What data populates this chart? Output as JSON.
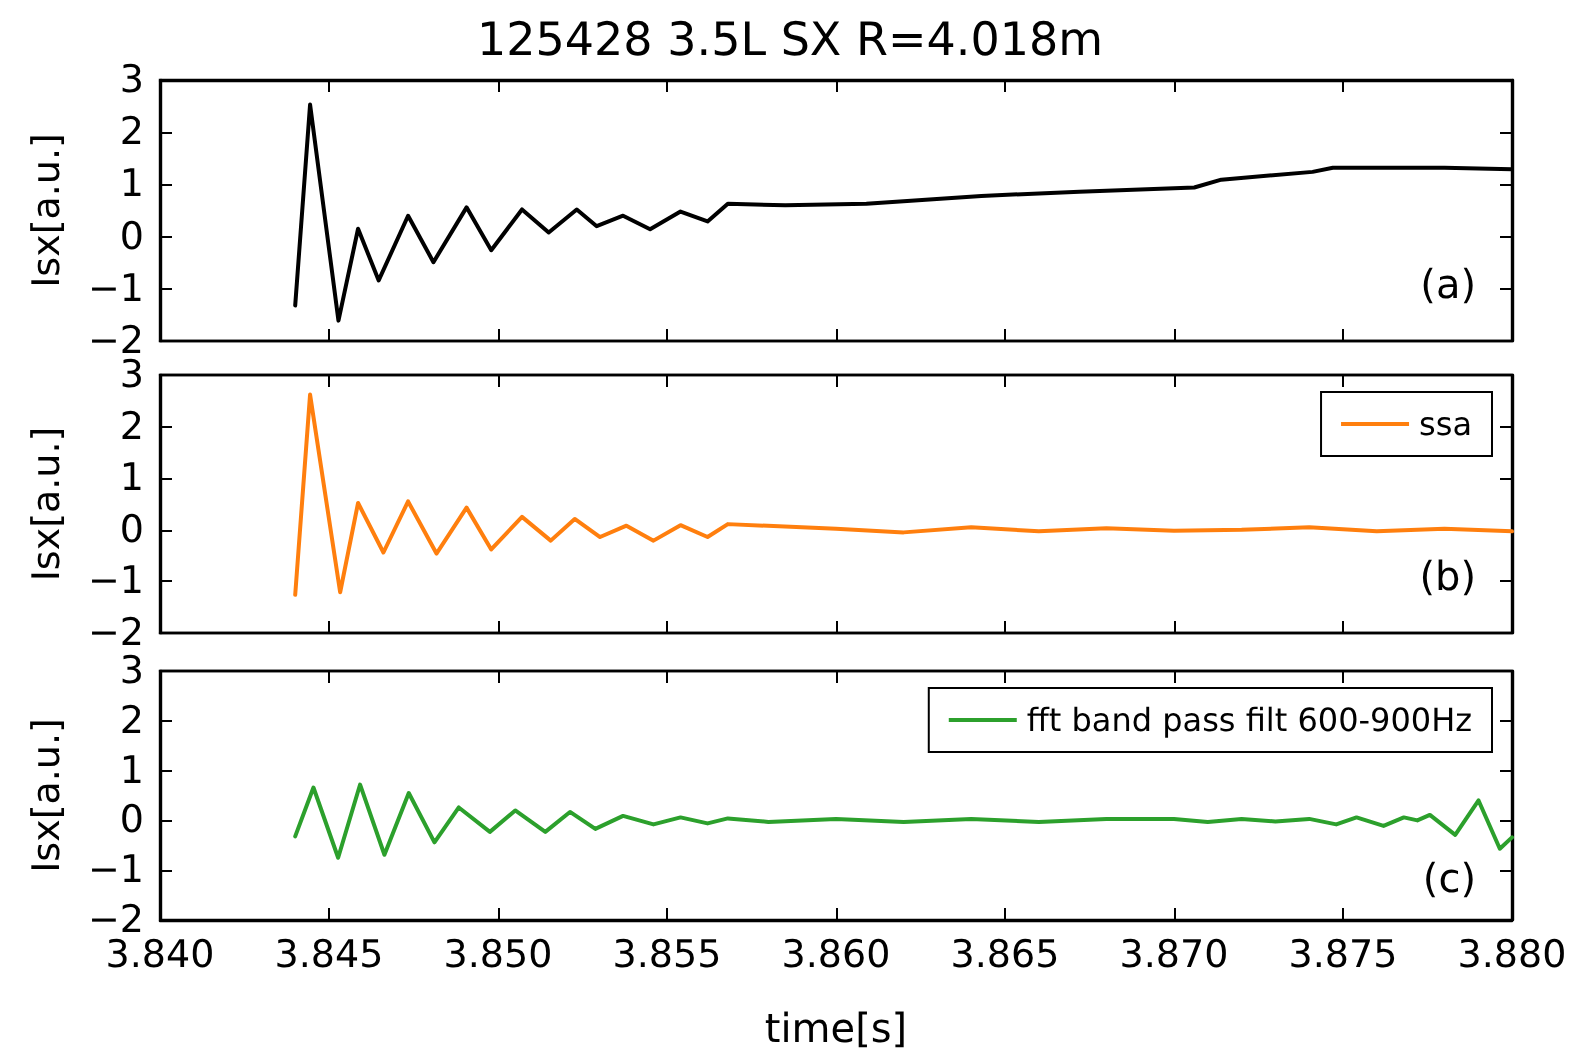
{
  "chart_data": [
    {
      "type": "line",
      "title": "125428 3.5L SX R=4.018m",
      "ylabel": "Isx[a.u.]",
      "annotations": [
        "(a)"
      ],
      "tick_labels": "y",
      "grid": false,
      "xlim": [
        3.84,
        3.88
      ],
      "xticks": [
        {
          "value": 3.84,
          "label": null
        },
        {
          "value": 3.845,
          "label": null
        },
        {
          "value": 3.85,
          "label": null
        },
        {
          "value": 3.855,
          "label": null
        },
        {
          "value": 3.86,
          "label": null
        },
        {
          "value": 3.865,
          "label": null
        },
        {
          "value": 3.87,
          "label": null
        },
        {
          "value": 3.875,
          "label": null
        },
        {
          "value": 3.88,
          "label": null
        }
      ],
      "ylim": [
        -2,
        3
      ],
      "yticks": [
        -2,
        -1,
        0,
        1,
        2,
        3
      ],
      "series": [
        {
          "color": "#000000",
          "x": [
            3.844,
            3.84444,
            3.84528,
            3.84586,
            3.84647,
            3.84734,
            3.84809,
            3.84907,
            3.8498,
            3.85071,
            3.8515,
            3.85233,
            3.85292,
            3.8537,
            3.8545,
            3.8554,
            3.8562,
            3.8568,
            3.8585,
            3.8609,
            3.8643,
            3.8672,
            3.8706,
            3.8714,
            3.8741,
            3.8747,
            3.878,
            3.88
          ],
          "values": [
            -1.32,
            2.53,
            -1.61,
            0.15,
            -0.84,
            0.4,
            -0.49,
            0.56,
            -0.26,
            0.52,
            0.08,
            0.52,
            0.2,
            0.4,
            0.14,
            0.48,
            0.29,
            0.63,
            0.6,
            0.63,
            0.78,
            0.86,
            0.94,
            1.09,
            1.24,
            1.32,
            1.32,
            1.29
          ]
        }
      ]
    },
    {
      "type": "line",
      "ylabel": "Isx[a.u.]",
      "annotations": [
        "(b)"
      ],
      "tick_labels": "y",
      "grid": false,
      "legend": "top right",
      "xlim": [
        3.84,
        3.88
      ],
      "xticks": [
        {
          "value": 3.84,
          "label": null
        },
        {
          "value": 3.845,
          "label": null
        },
        {
          "value": 3.85,
          "label": null
        },
        {
          "value": 3.855,
          "label": null
        },
        {
          "value": 3.86,
          "label": null
        },
        {
          "value": 3.865,
          "label": null
        },
        {
          "value": 3.87,
          "label": null
        },
        {
          "value": 3.875,
          "label": null
        },
        {
          "value": 3.88,
          "label": null
        }
      ],
      "ylim": [
        -2,
        3
      ],
      "yticks": [
        -2,
        -1,
        0,
        1,
        2,
        3
      ],
      "series": [
        {
          "name": "ssa",
          "color": "#ff7f0e",
          "x": [
            3.844,
            3.84444,
            3.84533,
            3.84586,
            3.84661,
            3.84734,
            3.84818,
            3.84907,
            3.8498,
            3.85071,
            3.85156,
            3.85227,
            3.85302,
            3.8538,
            3.8546,
            3.8554,
            3.8562,
            3.8568,
            3.86,
            3.862,
            3.864,
            3.866,
            3.868,
            3.87,
            3.872,
            3.874,
            3.876,
            3.878,
            3.88
          ],
          "values": [
            -1.26,
            2.62,
            -1.21,
            0.52,
            -0.44,
            0.55,
            -0.46,
            0.43,
            -0.38,
            0.25,
            -0.21,
            0.21,
            -0.14,
            0.08,
            -0.21,
            0.09,
            -0.14,
            0.11,
            0.02,
            -0.05,
            0.05,
            -0.03,
            0.03,
            -0.02,
            0.0,
            0.05,
            -0.03,
            0.02,
            -0.03
          ]
        }
      ]
    },
    {
      "type": "line",
      "ylabel": "Isx[a.u.]",
      "xlabel": "time[s]",
      "annotations": [
        "(c)"
      ],
      "grid": false,
      "legend": "top right",
      "xlim": [
        3.84,
        3.88
      ],
      "xticks": [
        {
          "value": 3.84,
          "label": "3.840"
        },
        {
          "value": 3.845,
          "label": "3.845"
        },
        {
          "value": 3.85,
          "label": "3.850"
        },
        {
          "value": 3.855,
          "label": "3.855"
        },
        {
          "value": 3.86,
          "label": "3.860"
        },
        {
          "value": 3.865,
          "label": "3.865"
        },
        {
          "value": 3.87,
          "label": "3.870"
        },
        {
          "value": 3.875,
          "label": "3.875"
        },
        {
          "value": 3.88,
          "label": "3.880"
        }
      ],
      "ylim": [
        -2,
        3
      ],
      "yticks": [
        -2,
        -1,
        0,
        1,
        2,
        3
      ],
      "series": [
        {
          "name": "fft band pass filt 600-900Hz",
          "color": "#2ca02c",
          "x": [
            3.844,
            3.84454,
            3.84527,
            3.84592,
            3.84664,
            3.84736,
            3.84812,
            3.84884,
            3.84976,
            3.85051,
            3.8514,
            3.85213,
            3.85288,
            3.8537,
            3.8546,
            3.8554,
            3.8562,
            3.8568,
            3.858,
            3.86,
            3.862,
            3.864,
            3.866,
            3.868,
            3.87,
            3.871,
            3.872,
            3.873,
            3.874,
            3.8748,
            3.8754,
            3.8762,
            3.8768,
            3.8772,
            3.87757,
            3.87832,
            3.87901,
            3.87964,
            3.88
          ],
          "values": [
            -0.32,
            0.66,
            -0.75,
            0.72,
            -0.69,
            0.55,
            -0.44,
            0.26,
            -0.23,
            0.2,
            -0.23,
            0.17,
            -0.17,
            0.09,
            -0.08,
            0.06,
            -0.06,
            0.04,
            -0.03,
            0.03,
            -0.03,
            0.03,
            -0.03,
            0.03,
            0.03,
            -0.03,
            0.03,
            -0.02,
            0.03,
            -0.08,
            0.06,
            -0.11,
            0.06,
            0.0,
            0.11,
            -0.29,
            0.4,
            -0.57,
            -0.34
          ]
        }
      ]
    }
  ]
}
